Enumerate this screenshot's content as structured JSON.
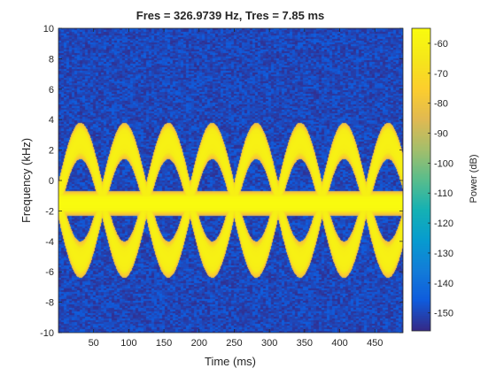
{
  "chart_data": {
    "type": "heatmap",
    "title": "Fres = 326.9739 Hz, Tres = 7.85 ms",
    "xlabel": "Time (ms)",
    "ylabel": "Frequency (kHz)",
    "xlim": [
      0,
      490
    ],
    "ylim": [
      -10,
      10
    ],
    "xticks": [
      50,
      100,
      150,
      200,
      250,
      300,
      350,
      400,
      450
    ],
    "yticks": [
      -10,
      -8,
      -6,
      -4,
      -2,
      0,
      2,
      4,
      6,
      8,
      10
    ],
    "colorbar": {
      "label": "Power (dB)",
      "range": [
        -156,
        -55
      ],
      "ticks": [
        -60,
        -70,
        -80,
        -90,
        -100,
        -110,
        -120,
        -130,
        -140,
        -150
      ],
      "colormap": "parula"
    },
    "features": {
      "noise_floor_db": -150,
      "constant_tone": {
        "frequency_khz": -1.5,
        "power_db": -55
      },
      "sinusoidal_fm_components": [
        {
          "center_khz": -1.3,
          "deviation_khz": 3.9,
          "period_ms": 125,
          "phase": 0,
          "power_db": -60
        },
        {
          "center_khz": -1.3,
          "deviation_khz": 3.9,
          "period_ms": 125,
          "phase": 180,
          "power_db": -60
        }
      ]
    }
  }
}
